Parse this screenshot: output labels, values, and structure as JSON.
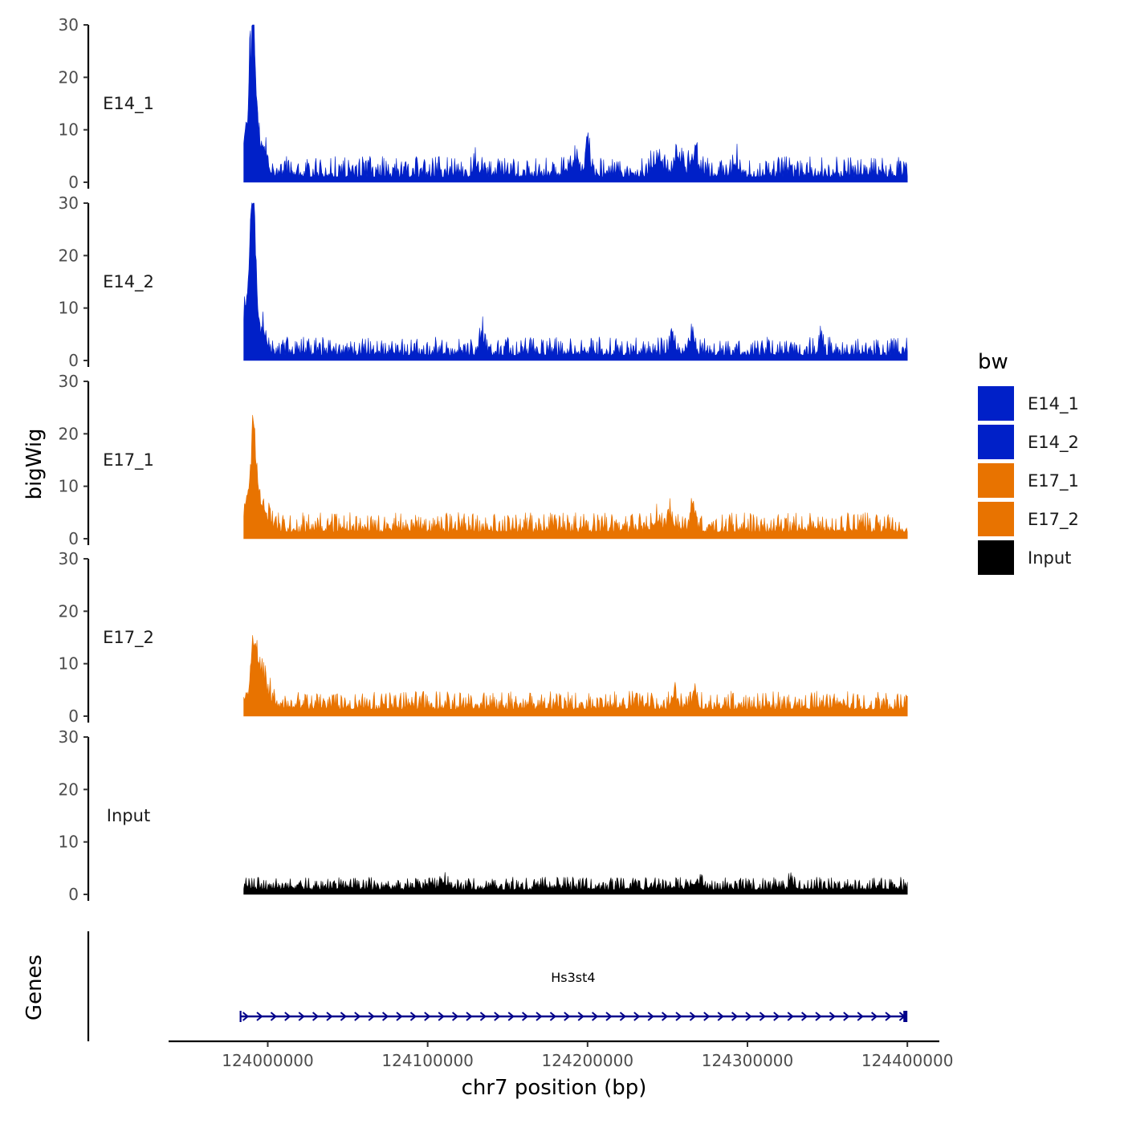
{
  "chart_data": {
    "type": "area",
    "region": {
      "chromosome": "chr7",
      "start": 123985000,
      "end": 124400000
    },
    "xlabel": "chr7 position (bp)",
    "ylabel": "bigWig",
    "x_ticks": [
      124000000,
      124100000,
      124200000,
      124300000,
      124400000
    ],
    "x_tick_labels": [
      "124000000",
      "124100000",
      "124200000",
      "124300000",
      "124400000"
    ],
    "xlim": [
      123938000,
      124420000
    ],
    "ylim": [
      0,
      30
    ],
    "y_ticks": [
      0,
      10,
      20,
      30
    ],
    "y_tick_labels": [
      "0",
      "10",
      "20",
      "30"
    ],
    "legend": {
      "title": "bw",
      "entries": [
        {
          "label": "E14_1",
          "color": "#0020C8"
        },
        {
          "label": "E14_2",
          "color": "#0020C8"
        },
        {
          "label": "E17_1",
          "color": "#E87300"
        },
        {
          "label": "E17_2",
          "color": "#E87300"
        },
        {
          "label": "Input",
          "color": "#000000"
        }
      ]
    },
    "series": [
      {
        "name": "E14_1",
        "color": "#0020C8",
        "baseline": 1.0,
        "noise": 1.8,
        "seed": 11,
        "peaks": [
          {
            "x": 123991000,
            "height": 26.8,
            "width": 1400
          },
          {
            "x": 123989000,
            "height": 17,
            "width": 2200
          },
          {
            "x": 123995000,
            "height": 8,
            "width": 3500
          },
          {
            "x": 123985500,
            "height": 5,
            "width": 1000
          },
          {
            "x": 124200000,
            "height": 6.2,
            "width": 1500
          },
          {
            "x": 124192000,
            "height": 3.5,
            "width": 2500
          },
          {
            "x": 124243000,
            "height": 3.5,
            "width": 2500
          },
          {
            "x": 124257000,
            "height": 3.8,
            "width": 2500
          },
          {
            "x": 124267000,
            "height": 4,
            "width": 2500
          },
          {
            "x": 124130000,
            "height": 3,
            "width": 1500
          },
          {
            "x": 124293000,
            "height": 3,
            "width": 1500
          }
        ]
      },
      {
        "name": "E14_2",
        "color": "#0020C8",
        "baseline": 1.0,
        "noise": 1.6,
        "seed": 23,
        "peaks": [
          {
            "x": 123991000,
            "height": 28,
            "width": 1300
          },
          {
            "x": 123989000,
            "height": 18,
            "width": 2200
          },
          {
            "x": 123995000,
            "height": 6,
            "width": 3500
          },
          {
            "x": 123985500,
            "height": 5,
            "width": 1000
          },
          {
            "x": 124134000,
            "height": 5.2,
            "width": 1200
          },
          {
            "x": 124253000,
            "height": 3.5,
            "width": 2000
          },
          {
            "x": 124265000,
            "height": 3.2,
            "width": 2000
          },
          {
            "x": 124346000,
            "height": 3.5,
            "width": 1200
          }
        ]
      },
      {
        "name": "E17_1",
        "color": "#E87300",
        "baseline": 1.3,
        "noise": 1.7,
        "seed": 37,
        "peaks": [
          {
            "x": 123991500,
            "height": 15.8,
            "width": 1600
          },
          {
            "x": 123989500,
            "height": 9,
            "width": 2500
          },
          {
            "x": 123996000,
            "height": 5,
            "width": 4000
          },
          {
            "x": 123986000,
            "height": 3.5,
            "width": 1500
          },
          {
            "x": 124252000,
            "height": 4,
            "width": 1500
          },
          {
            "x": 124266000,
            "height": 5,
            "width": 1500
          },
          {
            "x": 124244000,
            "height": 2.5,
            "width": 2500
          }
        ]
      },
      {
        "name": "E17_2",
        "color": "#E87300",
        "baseline": 1.3,
        "noise": 1.6,
        "seed": 53,
        "peaks": [
          {
            "x": 123991000,
            "height": 12.5,
            "width": 1500
          },
          {
            "x": 123994000,
            "height": 7,
            "width": 3000
          },
          {
            "x": 123998000,
            "height": 3.5,
            "width": 4000
          },
          {
            "x": 123986000,
            "height": 3,
            "width": 1500
          },
          {
            "x": 124254000,
            "height": 3.5,
            "width": 1500
          },
          {
            "x": 124267000,
            "height": 3.8,
            "width": 1500
          }
        ]
      },
      {
        "name": "Input",
        "color": "#000000",
        "baseline": 0.9,
        "noise": 1.1,
        "seed": 71,
        "peaks": [
          {
            "x": 124110000,
            "height": 1.3,
            "width": 3000
          },
          {
            "x": 124268000,
            "height": 1.2,
            "width": 3000
          },
          {
            "x": 124327000,
            "height": 2,
            "width": 1000
          }
        ]
      }
    ],
    "genes_track": {
      "title": "Genes",
      "genes": [
        {
          "name": "Hs3st4",
          "start": 123983000,
          "end": 124399000,
          "strand": "+",
          "color": "#00008B"
        }
      ]
    }
  }
}
